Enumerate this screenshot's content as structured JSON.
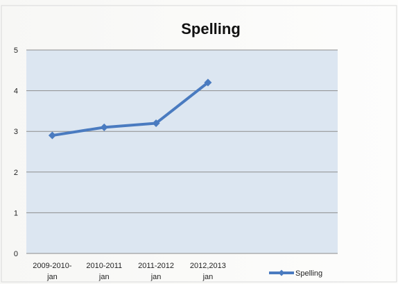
{
  "chart_data": {
    "type": "line",
    "title": "Spelling",
    "categories": [
      [
        "2009-2010-",
        "jan"
      ],
      [
        "2010-2011",
        "jan"
      ],
      [
        "2011-2012",
        "jan"
      ],
      [
        "2012,2013",
        "jan"
      ]
    ],
    "category_slots": 6,
    "series": [
      {
        "name": "Spelling",
        "values": [
          2.9,
          3.1,
          3.2,
          4.2
        ]
      }
    ],
    "xlabel": "",
    "ylabel": "",
    "ylim": [
      0,
      5
    ],
    "yticks": [
      "0",
      "1",
      "2",
      "3",
      "4",
      "5"
    ],
    "grid": true,
    "legend": "bottom-right",
    "colors": {
      "series": "#4a7bc0",
      "plot_background": "#dce6f1",
      "gridline": "#8c8c8c"
    }
  }
}
